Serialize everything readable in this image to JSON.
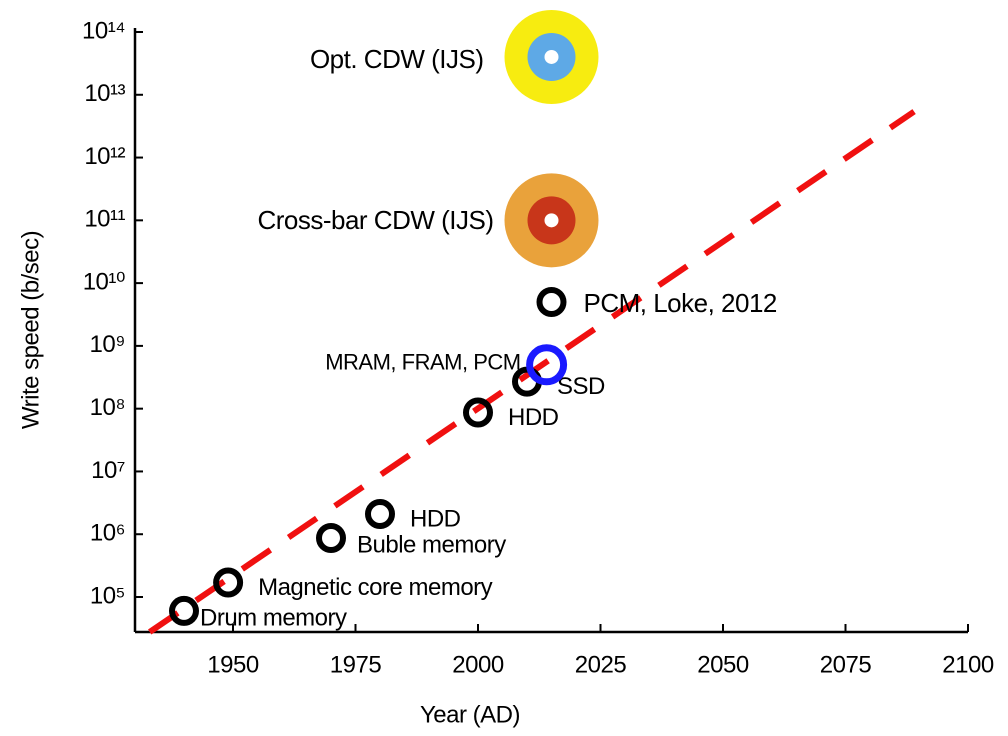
{
  "chart_data": {
    "type": "scatter",
    "x_label": "Year (AD)",
    "y_label": "Write speed (b/sec)",
    "y_scale": "log",
    "xlim": [
      1930,
      2100
    ],
    "xticks": [
      1950,
      1975,
      2000,
      2025,
      2050,
      2075,
      2100
    ],
    "ylim": [
      27700,
      100000000000000
    ],
    "yticks": [
      {
        "value": 100000,
        "label": "10⁵"
      },
      {
        "value": 1000000,
        "label": "10⁶"
      },
      {
        "value": 10000000,
        "label": "10⁷"
      },
      {
        "value": 100000000,
        "label": "10⁸"
      },
      {
        "value": 1000000000,
        "label": "10⁹"
      },
      {
        "value": 10000000000,
        "label": "10¹⁰"
      },
      {
        "value": 100000000000,
        "label": "10¹¹"
      },
      {
        "value": 1000000000000,
        "label": "10¹²"
      },
      {
        "value": 10000000000000,
        "label": "10¹³"
      },
      {
        "value": 100000000000000,
        "label": "10¹⁴"
      }
    ],
    "points": [
      {
        "label": "Drum memory",
        "x": 1940,
        "y": 60000,
        "style": "ring",
        "color": "#000000"
      },
      {
        "label": "Magnetic core memory",
        "x": 1949,
        "y": 170000,
        "style": "ring",
        "color": "#000000"
      },
      {
        "label": "Buble memory",
        "x": 1970,
        "y": 870000,
        "style": "ring",
        "color": "#000000"
      },
      {
        "label": "HDD",
        "x": 1980,
        "y": 2100000,
        "style": "ring",
        "color": "#000000"
      },
      {
        "label": "HDD",
        "x": 2000,
        "y": 87000000,
        "style": "ring",
        "color": "#000000"
      },
      {
        "label": "SSD",
        "x": 2010,
        "y": 270000000,
        "style": "ring",
        "color": "#000000"
      },
      {
        "label": "MRAM, FRAM, PCM",
        "x": 2014,
        "y": 500000000,
        "style": "ring",
        "color": "#1a1aff"
      },
      {
        "label": "PCM, Loke, 2012",
        "x": 2015,
        "y": 5000000000,
        "style": "ring",
        "color": "#000000"
      },
      {
        "label": "Cross-bar CDW (IJS)",
        "x": 2015,
        "y": 100000000000,
        "style": "disc",
        "colors": [
          "#e9a23b",
          "#c8361a"
        ]
      },
      {
        "label": "Opt. CDW (IJS)",
        "x": 2015,
        "y": 40000000000000,
        "style": "disc",
        "colors": [
          "#f7ec10",
          "#5ea9e6"
        ]
      }
    ],
    "trend": {
      "x": [
        1933,
        2089
      ],
      "values": [
        27700,
        5400000000000
      ],
      "color": "#f01010"
    }
  }
}
